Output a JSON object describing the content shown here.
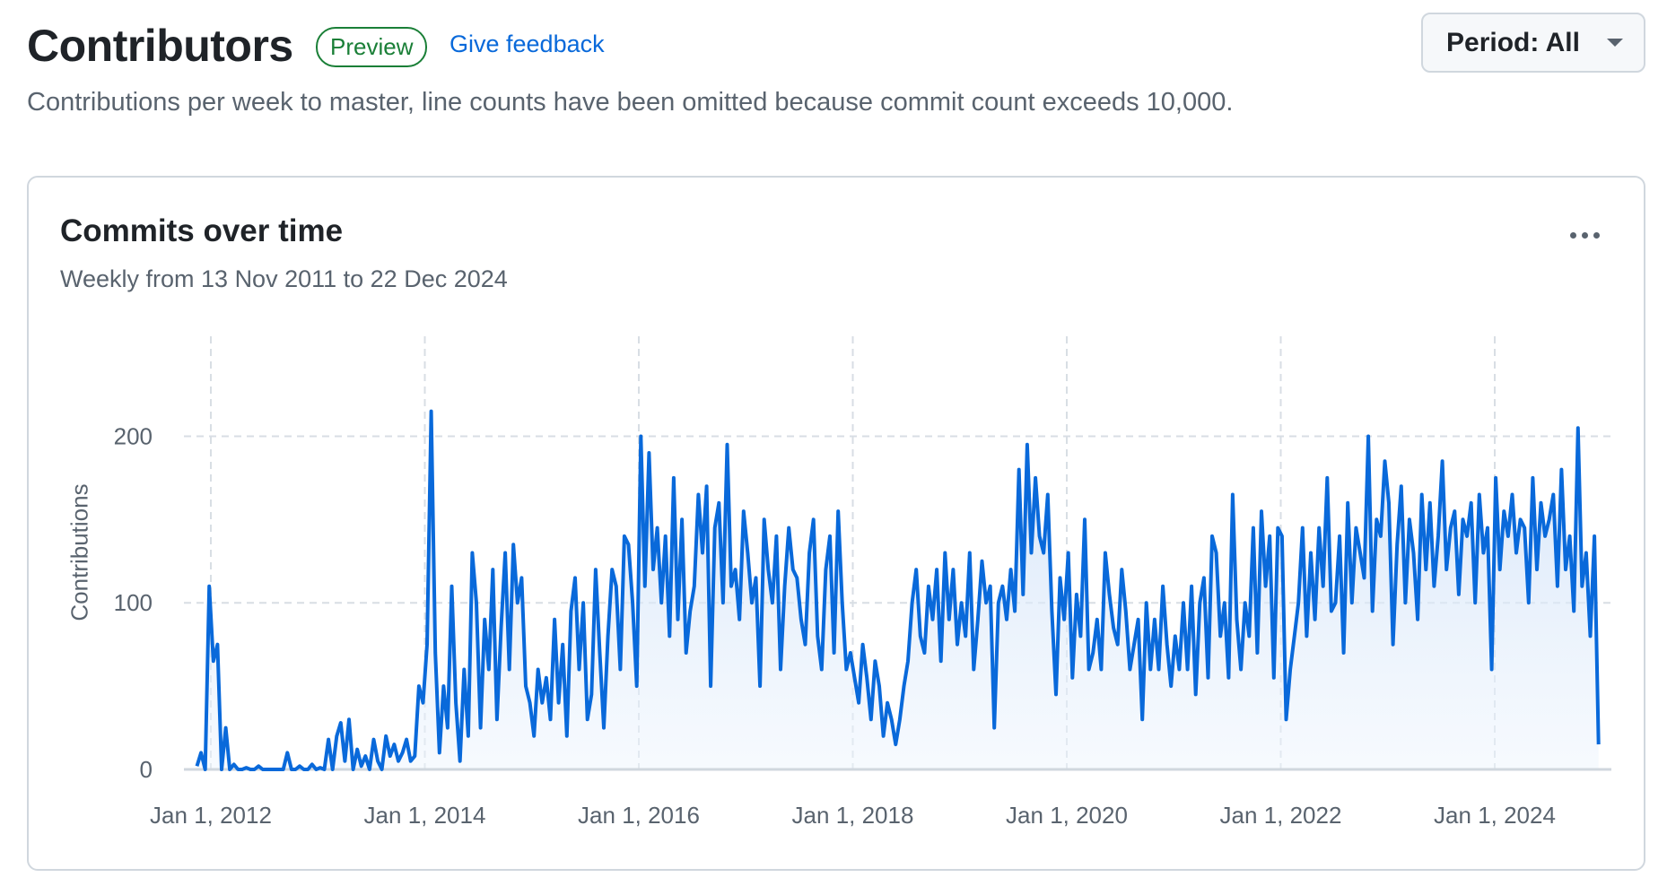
{
  "header": {
    "title": "Contributors",
    "badge": "Preview",
    "feedback_link": "Give feedback",
    "period_button": "Period: All",
    "subtitle": "Contributions per week to master, line counts have been omitted because commit count exceeds 10,000."
  },
  "card": {
    "title": "Commits over time",
    "subtitle": "Weekly from 13 Nov 2011 to 22 Dec 2024",
    "more_icon": "kebab-horizontal-icon"
  },
  "colors": {
    "line": "#0969da",
    "fill": "#dbe9fb",
    "grid": "#d8dee4"
  },
  "chart_data": {
    "type": "area",
    "title": "Commits over time",
    "xlabel": "",
    "ylabel": "Contributions",
    "ylim": [
      0,
      260
    ],
    "yticks": [
      0,
      100,
      200
    ],
    "ytick_labels": [
      "0",
      "100",
      "200"
    ],
    "xticks": [
      2012,
      2014,
      2016,
      2018,
      2020,
      2022,
      2024
    ],
    "xtick_labels": [
      "Jan 1, 2012",
      "Jan 1, 2014",
      "Jan 1, 2016",
      "Jan 1, 2018",
      "Jan 1, 2020",
      "Jan 1, 2022",
      "Jan 1, 2024"
    ],
    "x_start": 2011.87,
    "x_end": 2024.97,
    "grid": true,
    "values": [
      2,
      10,
      0,
      110,
      65,
      75,
      0,
      25,
      0,
      3,
      0,
      0,
      1,
      0,
      0,
      2,
      0,
      0,
      0,
      0,
      0,
      0,
      10,
      0,
      0,
      2,
      0,
      0,
      3,
      0,
      1,
      0,
      18,
      0,
      20,
      28,
      5,
      30,
      0,
      12,
      2,
      8,
      0,
      18,
      5,
      0,
      20,
      8,
      15,
      5,
      10,
      18,
      5,
      8,
      50,
      40,
      75,
      215,
      70,
      10,
      50,
      25,
      110,
      40,
      5,
      60,
      20,
      130,
      100,
      25,
      90,
      60,
      120,
      30,
      85,
      130,
      60,
      135,
      100,
      115,
      50,
      40,
      20,
      60,
      40,
      55,
      30,
      90,
      40,
      75,
      20,
      95,
      115,
      60,
      100,
      30,
      45,
      120,
      70,
      25,
      80,
      120,
      110,
      60,
      140,
      135,
      100,
      50,
      200,
      110,
      190,
      120,
      145,
      100,
      140,
      80,
      175,
      90,
      150,
      70,
      95,
      110,
      165,
      130,
      170,
      50,
      145,
      160,
      100,
      195,
      110,
      120,
      90,
      155,
      130,
      100,
      115,
      50,
      150,
      120,
      100,
      140,
      60,
      110,
      145,
      120,
      115,
      90,
      75,
      130,
      150,
      80,
      60,
      120,
      140,
      70,
      155,
      100,
      60,
      70,
      55,
      40,
      75,
      55,
      30,
      65,
      50,
      20,
      40,
      30,
      15,
      30,
      50,
      65,
      100,
      120,
      80,
      70,
      110,
      90,
      120,
      65,
      130,
      90,
      120,
      75,
      100,
      80,
      130,
      60,
      90,
      125,
      100,
      110,
      25,
      100,
      110,
      90,
      120,
      95,
      180,
      105,
      195,
      130,
      175,
      140,
      130,
      165,
      95,
      45,
      115,
      90,
      130,
      55,
      105,
      80,
      150,
      60,
      70,
      90,
      60,
      130,
      105,
      85,
      75,
      120,
      95,
      60,
      75,
      90,
      30,
      100,
      60,
      90,
      60,
      110,
      75,
      50,
      80,
      60,
      100,
      60,
      110,
      45,
      100,
      115,
      55,
      140,
      130,
      80,
      100,
      55,
      165,
      90,
      60,
      100,
      80,
      145,
      70,
      155,
      110,
      140,
      55,
      145,
      140,
      30,
      60,
      80,
      100,
      145,
      80,
      130,
      90,
      145,
      110,
      175,
      95,
      100,
      140,
      70,
      160,
      100,
      145,
      130,
      115,
      200,
      95,
      150,
      140,
      185,
      160,
      75,
      135,
      170,
      100,
      150,
      130,
      90,
      165,
      120,
      160,
      110,
      140,
      185,
      120,
      145,
      155,
      105,
      150,
      140,
      160,
      100,
      165,
      130,
      145,
      60,
      175,
      120,
      155,
      140,
      165,
      130,
      150,
      145,
      100,
      175,
      120,
      160,
      140,
      150,
      165,
      110,
      180,
      120,
      140,
      95,
      205,
      110,
      130,
      80,
      140,
      15
    ]
  }
}
